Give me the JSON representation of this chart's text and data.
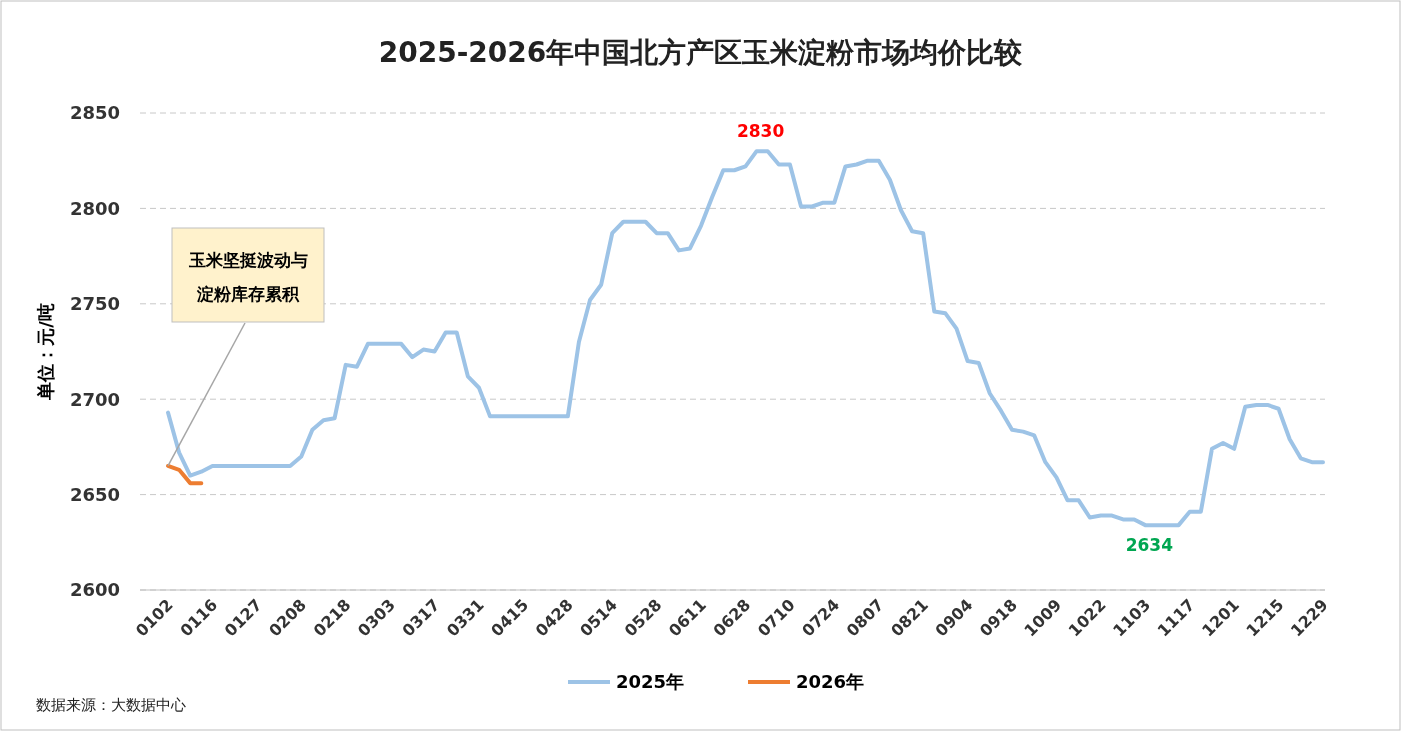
{
  "chart_data": {
    "type": "line",
    "title": "2025-2026年中国北方产区玉米淀粉市场均价比较",
    "ylabel": "单位：元/吨",
    "categories": [
      "0102",
      null,
      null,
      null,
      "0116",
      null,
      null,
      null,
      "0127",
      null,
      null,
      null,
      "0208",
      null,
      null,
      null,
      "0218",
      null,
      null,
      null,
      "0303",
      null,
      null,
      null,
      "0317",
      null,
      null,
      null,
      "0331",
      null,
      null,
      null,
      "0415",
      null,
      null,
      null,
      "0428",
      null,
      null,
      null,
      "0514",
      null,
      null,
      null,
      "0528",
      null,
      null,
      null,
      "0611",
      null,
      null,
      null,
      "0628",
      null,
      null,
      null,
      "0710",
      null,
      null,
      null,
      "0724",
      null,
      null,
      null,
      "0807",
      null,
      null,
      null,
      "0821",
      null,
      null,
      null,
      "0904",
      null,
      null,
      null,
      "0918",
      null,
      null,
      null,
      "1009",
      null,
      null,
      null,
      "1022",
      null,
      null,
      null,
      "1103",
      null,
      null,
      null,
      "1117",
      null,
      null,
      null,
      "1201",
      null,
      null,
      null,
      "1215",
      null,
      null,
      null,
      "1229"
    ],
    "series": [
      {
        "name": "2025年",
        "color": "#9dc3e6",
        "values": [
          2693,
          2672,
          2660,
          2662,
          2665,
          2665,
          2665,
          2665,
          2665,
          2665,
          2665,
          2665,
          2670,
          2684,
          2689,
          2690,
          2718,
          2717,
          2729,
          2729,
          2729,
          2729,
          2722,
          2726,
          2725,
          2735,
          2735,
          2712,
          2706,
          2691,
          2691,
          2691,
          2691,
          2691,
          2691,
          2691,
          2691,
          2730,
          2752,
          2760,
          2787,
          2793,
          2793,
          2793,
          2787,
          2787,
          2778,
          2779,
          2791,
          2806,
          2820,
          2820,
          2822,
          2830,
          2830,
          2823,
          2823,
          2801,
          2801,
          2803,
          2803,
          2822,
          2823,
          2825,
          2825,
          2815,
          2799,
          2788,
          2787,
          2746,
          2745,
          2737,
          2720,
          2719,
          2703,
          2694,
          2684,
          2683,
          2681,
          2667,
          2659,
          2647,
          2647,
          2638,
          2639,
          2639,
          2637,
          2637,
          2634,
          2634,
          2634,
          2634,
          2641,
          2641,
          2674,
          2677,
          2674,
          2696,
          2697,
          2697,
          2695,
          2679,
          2669,
          2667,
          2667
        ]
      },
      {
        "name": "2026年",
        "color": "#ed7d31",
        "values": [
          2665,
          2663,
          2656,
          2656,
          null,
          null,
          null,
          null,
          null,
          null,
          null,
          null,
          null,
          null,
          null,
          null,
          null,
          null,
          null,
          null,
          null,
          null,
          null,
          null,
          null,
          null,
          null,
          null,
          null,
          null,
          null,
          null,
          null,
          null,
          null,
          null,
          null,
          null,
          null,
          null,
          null,
          null,
          null,
          null,
          null,
          null,
          null,
          null,
          null,
          null,
          null,
          null,
          null,
          null,
          null,
          null,
          null,
          null,
          null,
          null,
          null,
          null,
          null,
          null,
          null,
          null,
          null,
          null,
          null,
          null,
          null,
          null,
          null,
          null,
          null,
          null,
          null,
          null,
          null,
          null,
          null,
          null,
          null,
          null,
          null,
          null,
          null,
          null,
          null,
          null,
          null,
          null,
          null,
          null,
          null,
          null,
          null,
          null,
          null,
          null,
          null,
          null,
          null,
          null,
          null
        ]
      }
    ],
    "ylim": [
      2600,
      2850
    ],
    "yticks": [
      2600,
      2650,
      2700,
      2750,
      2800,
      2850
    ],
    "grid": "y",
    "legend": "bottom",
    "marker": "none",
    "line_style": "solid",
    "annotations": [
      {
        "text": "2830",
        "y": 2830
      },
      {
        "text": "2634",
        "y": 2634
      },
      {
        "text": "玉米坚挺波动与淀粉库存累积",
        "x": "0102",
        "y": 2665
      },
      "数据来源：大数据中心"
    ]
  }
}
